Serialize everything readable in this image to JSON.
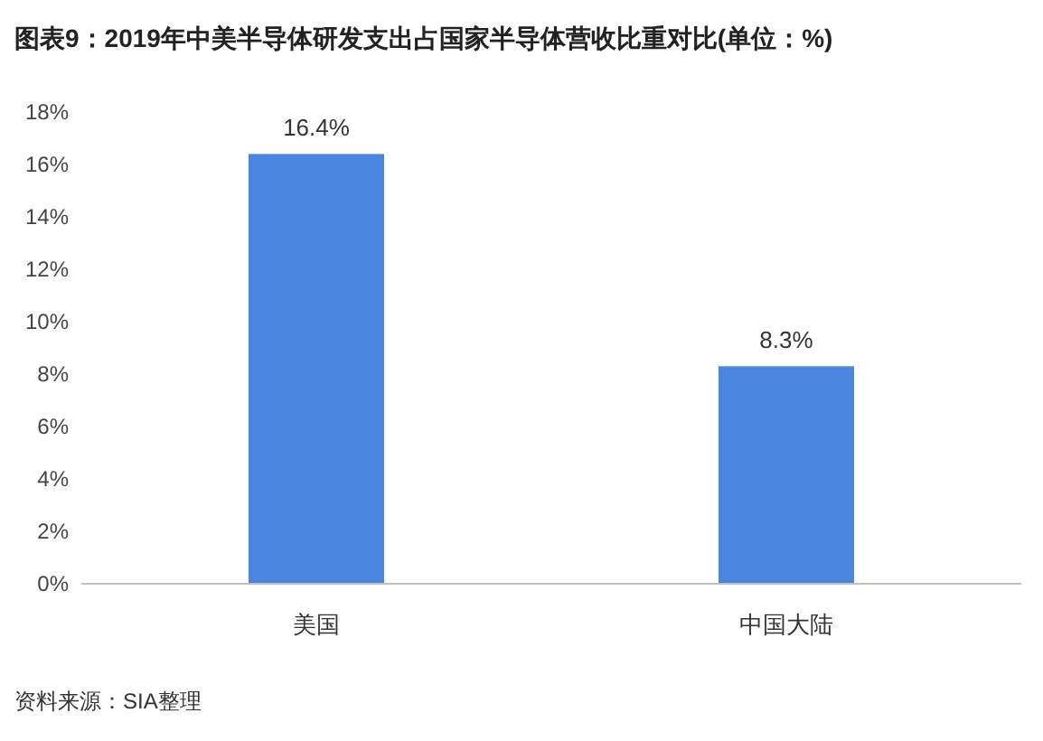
{
  "chart_data": {
    "type": "bar",
    "title": "图表9：2019年中美半导体研发支出占国家半导体营收比重对比(单位：%)",
    "categories": [
      "美国",
      "中国大陆"
    ],
    "values": [
      16.4,
      8.3
    ],
    "value_labels": [
      "16.4%",
      "8.3%"
    ],
    "color": "#4a86e0",
    "ylim": [
      0,
      18
    ],
    "yticks": [
      {
        "value": 0,
        "label": "0%"
      },
      {
        "value": 2,
        "label": "2%"
      },
      {
        "value": 4,
        "label": "4%"
      },
      {
        "value": 6,
        "label": "6%"
      },
      {
        "value": 8,
        "label": "8%"
      },
      {
        "value": 10,
        "label": "10%"
      },
      {
        "value": 12,
        "label": "12%"
      },
      {
        "value": 14,
        "label": "14%"
      },
      {
        "value": 16,
        "label": "16%"
      },
      {
        "value": 18,
        "label": "18%"
      }
    ],
    "annotations": [
      "资料来源：SIA整理"
    ]
  }
}
